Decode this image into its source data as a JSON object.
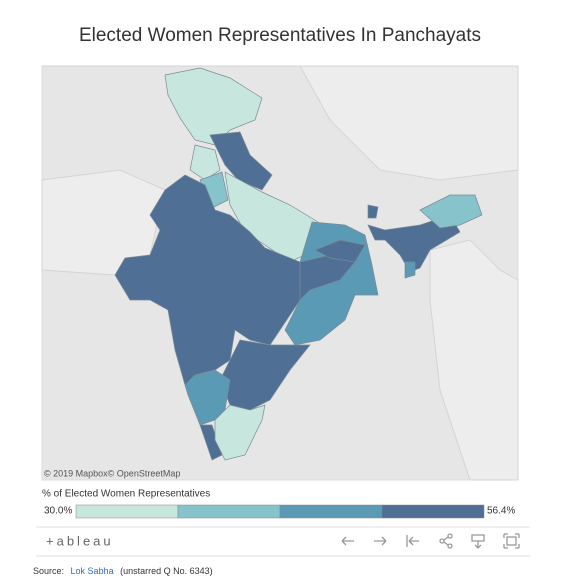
{
  "header": {
    "title": "Elected Women Representatives In Panchayats"
  },
  "map": {
    "attribution": "© 2019 Mapbox© OpenStreetMap"
  },
  "legend": {
    "title": "% of Elected Women Representatives",
    "min_label": "30.0%",
    "max_label": "56.4%"
  },
  "toolbar": {
    "logo": "+ableau"
  },
  "footer": {
    "prefix": "Source:",
    "link": "Lok Sabha",
    "note": "(unstarred Q No. 6343)"
  }
}
